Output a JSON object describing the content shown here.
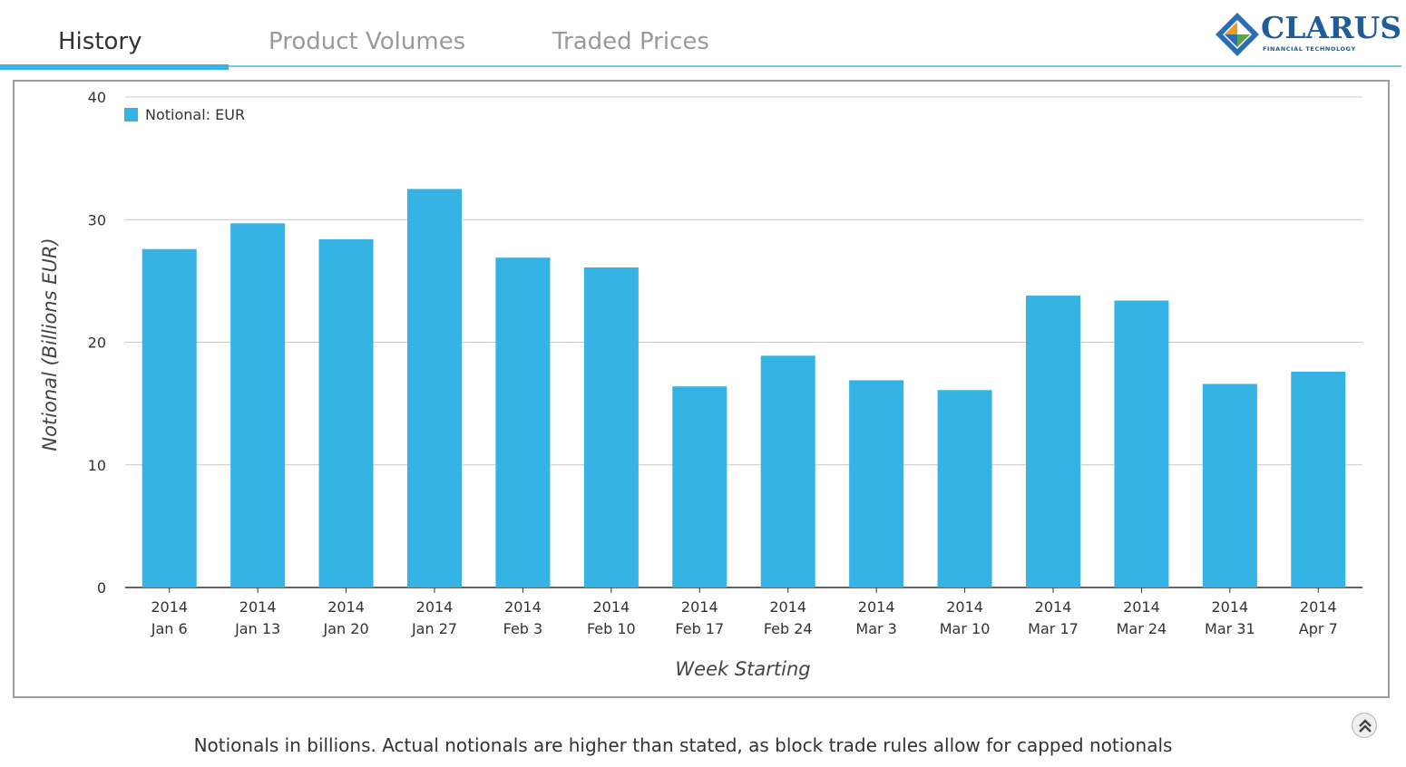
{
  "tabs": [
    {
      "label": "History",
      "active": true
    },
    {
      "label": "Product Volumes",
      "active": false
    },
    {
      "label": "Traded Prices",
      "active": false
    }
  ],
  "logo": {
    "name": "CLARUS",
    "tagline": "FINANCIAL TECHNOLOGY",
    "colors": [
      "#2a6fb5",
      "#f29a1d",
      "#5aa54c"
    ]
  },
  "chart_data": {
    "type": "bar",
    "categories": [
      [
        "2014",
        "Jan 6"
      ],
      [
        "2014",
        "Jan 13"
      ],
      [
        "2014",
        "Jan 20"
      ],
      [
        "2014",
        "Jan 27"
      ],
      [
        "2014",
        "Feb 3"
      ],
      [
        "2014",
        "Feb 10"
      ],
      [
        "2014",
        "Feb 17"
      ],
      [
        "2014",
        "Feb 24"
      ],
      [
        "2014",
        "Mar 3"
      ],
      [
        "2014",
        "Mar 10"
      ],
      [
        "2014",
        "Mar 17"
      ],
      [
        "2014",
        "Mar 24"
      ],
      [
        "2014",
        "Mar 31"
      ],
      [
        "2014",
        "Apr 7"
      ]
    ],
    "series": [
      {
        "name": "Notional: EUR",
        "color": "#34b3e4",
        "values": [
          27.6,
          29.7,
          28.4,
          32.5,
          26.9,
          26.1,
          16.4,
          18.9,
          16.9,
          16.1,
          23.8,
          23.4,
          16.6,
          17.6
        ]
      }
    ],
    "title": "",
    "xlabel": "Week Starting",
    "ylabel": "Notional (Billions EUR)",
    "ylim": [
      0,
      40
    ],
    "yticks": [
      0,
      10,
      20,
      30,
      40
    ],
    "grid": true,
    "legend": "top-left"
  },
  "footer": {
    "note": "Notionals in billions. Actual notionals are higher than stated, as block trade rules allow for capped notionals",
    "scroll_top_icon": "double-chevron-up-icon"
  }
}
